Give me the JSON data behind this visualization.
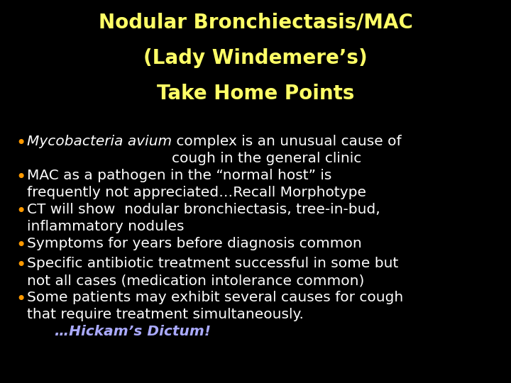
{
  "background_color": "#000000",
  "title_lines": [
    "Nodular Bronchiectasis/MAC",
    "(Lady Windemere’s)",
    "Take Home Points"
  ],
  "title_color": "#ffff66",
  "bullet_color": "#ff9900",
  "text_color": "#ffffff",
  "hickam_color": "#aaaaff",
  "bullets": [
    {
      "italic_part": "Mycobacteria avium",
      "normal_part": " complex is an unusual cause of\ncough in the general clinic"
    },
    {
      "italic_part": "",
      "normal_part": "MAC as a pathogen in the “normal host” is\nfrequently not appreciated…Recall Morphotype"
    },
    {
      "italic_part": "",
      "normal_part": "CT will show  nodular bronchiectasis, tree-in-bud,\ninflammatory nodules"
    },
    {
      "italic_part": "",
      "normal_part": "Symptoms for years before diagnosis common"
    },
    {
      "italic_part": "",
      "normal_part": "Specific antibiotic treatment successful in some but\nnot all cases (medication intolerance common)"
    },
    {
      "italic_part": "",
      "normal_part": "Some patients may exhibit several causes for cough\nthat require treatment simultaneously."
    }
  ],
  "hickam_text": "   …Hickam’s Dictum!",
  "title_fontsize": 20,
  "bullet_fontsize": 14.5,
  "hickam_fontsize": 14.5,
  "fig_width": 7.2,
  "fig_height": 5.4,
  "dpi": 100
}
